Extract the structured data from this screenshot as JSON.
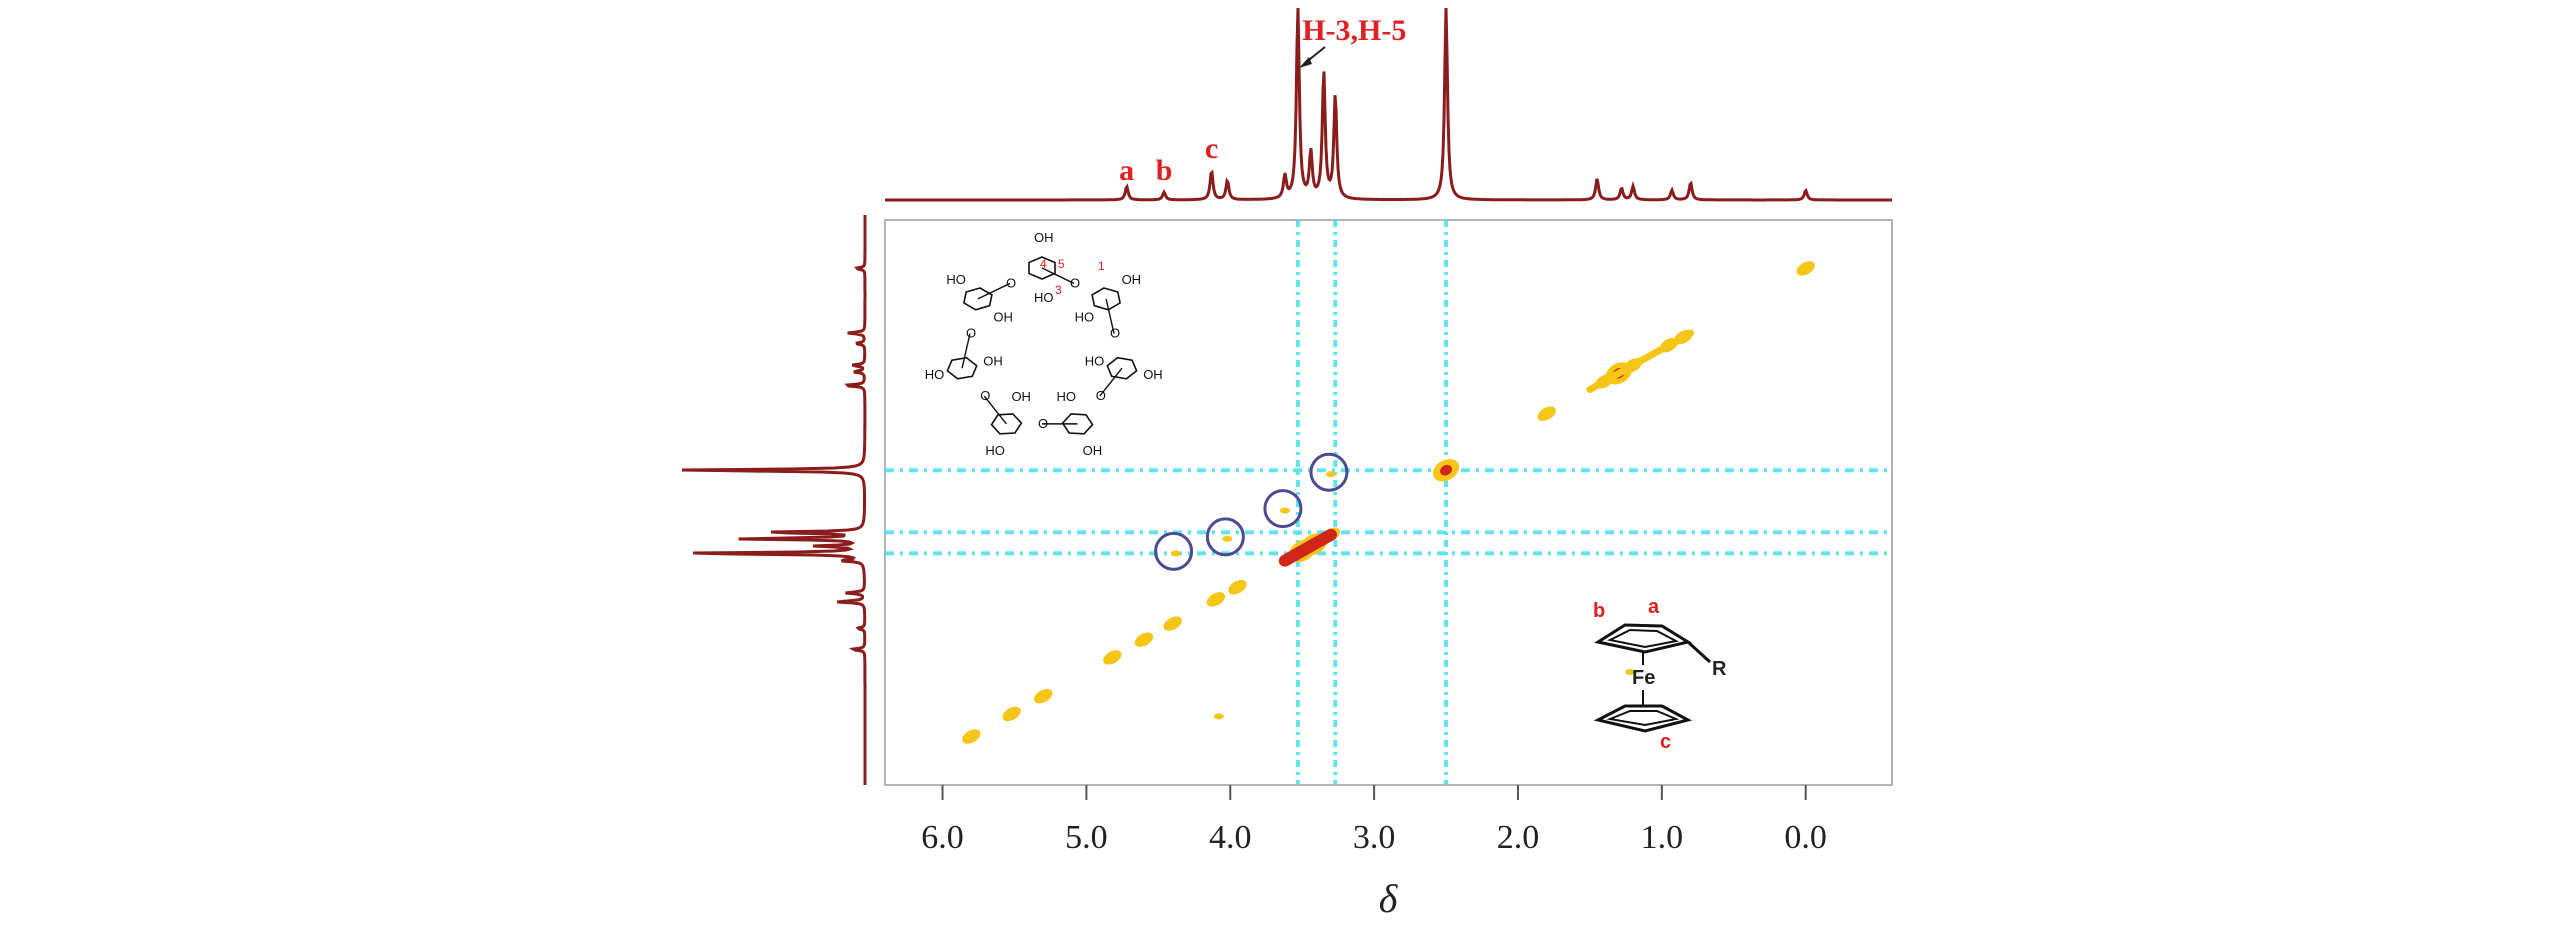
{
  "chart_data": {
    "type": "heatmap",
    "title": "",
    "xlabel": "δ",
    "ylabel": "",
    "xlim": [
      6.4,
      -0.6
    ],
    "ylim": [
      6.4,
      -0.6
    ],
    "x_ticks": [
      "6.0",
      "5.0",
      "4.0",
      "3.0",
      "2.0",
      "1.0",
      "0.0"
    ],
    "x_tick_values": [
      6.0,
      5.0,
      4.0,
      3.0,
      2.0,
      1.0,
      0.0
    ],
    "top_spectrum_peaks": [
      {
        "ppm": 4.72,
        "height": 0.07
      },
      {
        "ppm": 4.46,
        "height": 0.04
      },
      {
        "ppm": 4.13,
        "height": 0.15
      },
      {
        "ppm": 4.02,
        "height": 0.1
      },
      {
        "ppm": 3.62,
        "height": 0.12
      },
      {
        "ppm": 3.53,
        "height": 1.0
      },
      {
        "ppm": 3.44,
        "height": 0.24
      },
      {
        "ppm": 3.35,
        "height": 0.66
      },
      {
        "ppm": 3.27,
        "height": 0.54
      },
      {
        "ppm": 2.5,
        "height": 1.0
      },
      {
        "ppm": 1.45,
        "height": 0.11
      },
      {
        "ppm": 1.28,
        "height": 0.06
      },
      {
        "ppm": 1.2,
        "height": 0.07
      },
      {
        "ppm": 0.93,
        "height": 0.05
      },
      {
        "ppm": 0.8,
        "height": 0.09
      },
      {
        "ppm": 0.0,
        "height": 0.05
      }
    ],
    "peak_labels": [
      {
        "text": "a",
        "ppm": 4.72
      },
      {
        "text": "b",
        "ppm": 4.46
      },
      {
        "text": "c",
        "ppm": 4.13
      },
      {
        "text": "H-3,H-5",
        "ppm": 3.52
      }
    ],
    "diagonal_peaks": [
      5.8,
      5.52,
      5.3,
      4.82,
      4.6,
      4.4,
      4.1,
      3.95,
      3.6,
      3.5,
      3.42,
      3.3,
      2.5,
      1.8,
      1.4,
      1.3,
      1.2,
      0.95,
      0.85,
      0.0
    ],
    "cross_peaks": [
      {
        "x": 4.38,
        "y": 3.53
      },
      {
        "x": 4.02,
        "y": 3.35
      },
      {
        "x": 3.62,
        "y": 3.0
      },
      {
        "x": 3.3,
        "y": 2.55
      },
      {
        "x": 4.08,
        "y": 5.55
      },
      {
        "x": 1.22,
        "y": 5.0
      }
    ],
    "circled_peaks": [
      {
        "x": 4.38,
        "y": 3.53
      },
      {
        "x": 4.02,
        "y": 3.35
      },
      {
        "x": 3.62,
        "y": 3.0
      },
      {
        "x": 3.3,
        "y": 2.55
      }
    ],
    "t1_noise_streaks_ppm": [
      3.53,
      3.27,
      2.5
    ],
    "colors": {
      "spectrum": "#8b1c1c",
      "noise": "#4fe2ee",
      "peak_low": "#f5c518",
      "peak_high": "#d0261a",
      "circle": "#4b4b8f",
      "label": "#e02020"
    }
  },
  "structures": {
    "cyclodextrin": {
      "labels": [
        "HO",
        "OH",
        "O"
      ],
      "position_numbers": [
        "4",
        "5",
        "3",
        "1"
      ]
    },
    "ferrocene": {
      "fe_label": "Fe",
      "r_label": "R",
      "ring_labels": {
        "a": "a",
        "b": "b",
        "c": "c"
      }
    }
  }
}
